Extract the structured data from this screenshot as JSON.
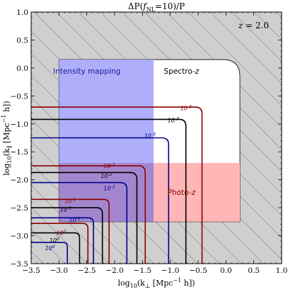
{
  "chart_data": {
    "type": "contour",
    "title": "ΔP(f_NL=10)/P",
    "title_parts": {
      "main": "ΔP(",
      "f": "f",
      "sub": "NL",
      "rest": "=10)/P"
    },
    "redshift_label": "z = 2.0",
    "redshift_parts": {
      "z": "z",
      "rest": " = 2.0"
    },
    "xlabel": "log10(k⊥ [Mpc^-1 h])",
    "xlabel_parts": {
      "pre": "log",
      "base": "10",
      "open": "(k",
      "sub": "⊥",
      "mid": " [Mpc",
      "exp": "−1",
      "end": " h])"
    },
    "ylabel": "log10(k∥ [Mpc^-1 h])",
    "ylabel_parts": {
      "pre": "log",
      "base": "10",
      "open": "(k",
      "sub": "∥",
      "mid": " [Mpc",
      "exp": "−1",
      "end": " h])"
    },
    "xlim": [
      -3.5,
      1.0
    ],
    "ylim": [
      -3.5,
      1.0
    ],
    "xticks": [
      "−3.5",
      "−3.0",
      "−2.5",
      "−2.0",
      "−1.5",
      "−1.0",
      "−0.5",
      "0.0",
      "0.5",
      "1.0"
    ],
    "yticks": [
      "−3.5",
      "−3.0",
      "−2.5",
      "−2.0",
      "−1.5",
      "−1.0",
      "−0.5",
      "0.0",
      "0.5",
      "1.0"
    ],
    "background": "gray hatched",
    "regions": [
      {
        "name": "Spectro-z",
        "label_parts": [
          "Spectro-",
          "z"
        ],
        "x": [
          -3.0,
          0.25
        ],
        "y": [
          -2.75,
          0.15
        ],
        "color": "#ffffff",
        "label_color": "#000000",
        "label_at": [
          -0.8,
          -0.1
        ]
      },
      {
        "name": "Intensity mapping",
        "label_parts": [
          "Intensity mapping",
          ""
        ],
        "x": [
          -3.0,
          -1.3
        ],
        "y": [
          -1.7,
          0.15
        ],
        "color": "#aeaefb",
        "label_color": "#1a1a9a",
        "label_at": [
          -2.5,
          -0.1
        ]
      },
      {
        "name": "Photo-z",
        "label_parts": [
          "Photo-",
          "z"
        ],
        "x": [
          -1.3,
          0.25
        ],
        "y": [
          -2.75,
          -1.7
        ],
        "color": "#ffb6b6",
        "label_color": "#8b0000",
        "label_at": [
          -0.8,
          -2.27
        ]
      },
      {
        "name": "overlap",
        "label_parts": [
          "",
          ""
        ],
        "x": [
          -3.0,
          -1.3
        ],
        "y": [
          -2.75,
          -1.7
        ],
        "color": "#a387ce",
        "label_color": "#000000",
        "label_at": [
          -3.0,
          -3.0
        ]
      }
    ],
    "contour_levels": [
      "10^-3",
      "10^-2",
      "10^-1",
      "10^0"
    ],
    "series": [
      {
        "color": "#8b0000",
        "level": "10^-3",
        "x0": -0.43,
        "y0": -0.7,
        "r": 0.12,
        "label_at": [
          -0.82,
          -0.72
        ]
      },
      {
        "color": "#000000",
        "level": "10^-3",
        "x0": -0.72,
        "y0": -0.92,
        "r": 0.12,
        "label_at": [
          -1.05,
          -0.93
        ]
      },
      {
        "color": "#00008b",
        "level": "10^-3",
        "x0": -1.03,
        "y0": -1.25,
        "r": 0.12,
        "label_at": [
          -1.47,
          -1.21
        ]
      },
      {
        "color": "#8b0000",
        "level": "10^-2",
        "x0": -1.45,
        "y0": -1.75,
        "r": 0.12,
        "label_at": [
          -2.2,
          -1.75
        ]
      },
      {
        "color": "#000000",
        "level": "10^-2",
        "x0": -1.6,
        "y0": -1.87,
        "r": 0.12,
        "label_at": [
          -2.25,
          -1.93
        ]
      },
      {
        "color": "#00008b",
        "level": "10^-2",
        "x0": -1.78,
        "y0": -2.05,
        "r": 0.12,
        "label_at": [
          -2.2,
          -2.15
        ]
      },
      {
        "color": "#8b0000",
        "level": "10^-1",
        "x0": -2.1,
        "y0": -2.35,
        "r": 0.1,
        "label_at": [
          -2.9,
          -2.38
        ]
      },
      {
        "color": "#000000",
        "level": "10^-1",
        "x0": -2.22,
        "y0": -2.5,
        "r": 0.1,
        "label_at": [
          -2.98,
          -2.53
        ]
      },
      {
        "color": "#00008b",
        "level": "10^-1",
        "x0": -2.38,
        "y0": -2.68,
        "r": 0.1,
        "label_at": [
          -2.82,
          -2.72
        ]
      },
      {
        "color": "#8b0000",
        "level": "10^0",
        "x0": -2.48,
        "y0": -2.78,
        "r": 0.09,
        "label_at": [
          -3.05,
          -2.95
        ]
      },
      {
        "color": "#000000",
        "level": "10^0",
        "x0": -2.63,
        "y0": -2.95,
        "r": 0.09,
        "label_at": [
          -3.17,
          -3.08
        ]
      },
      {
        "color": "#00008b",
        "level": "10^0",
        "x0": -2.85,
        "y0": -3.12,
        "r": 0.08,
        "label_at": [
          -3.25,
          -3.22
        ]
      }
    ],
    "grid": false,
    "legend": "none"
  }
}
